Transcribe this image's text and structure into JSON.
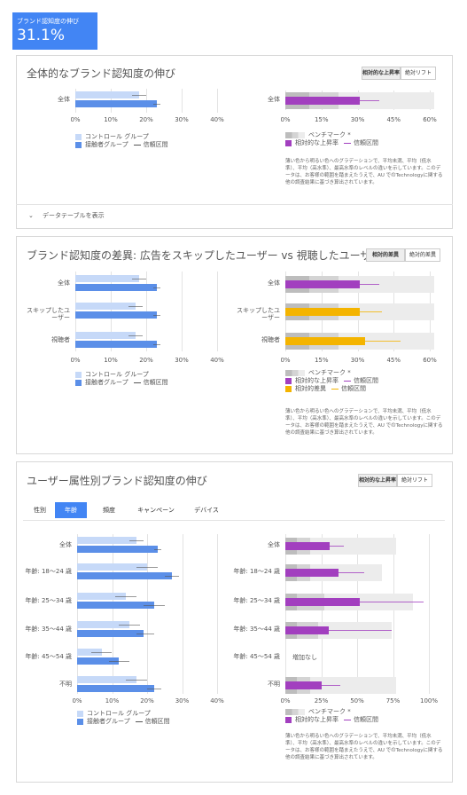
{
  "header": {
    "title": "ブランド認知度の伸び",
    "value": "31.1%"
  },
  "cards": [
    {
      "title": "全体的なブランド認知度の伸び",
      "buttons": [
        "相対的な上昇率",
        "絶対リフト"
      ],
      "note": "薄い色から明るい色へのグラデーションで、平均未満、平均（低水準）、平均（高水準）、最高水準のレベルの違いを示しています。このデータは、お客様の範囲を踏まえたうえで、AU でのTechnologyに関する他の調査結果に基づき算出されています。",
      "table_link": "データテーブルを表示"
    },
    {
      "title": "ブランド認知度の差異: 広告をスキップしたユーザー vs 視聴したユーザー",
      "buttons": [
        "相対的差異",
        "絶対的差異"
      ],
      "note": "薄い色から明るい色へのグラデーションで、平均未満、平均（低水準）、平均（高水準）、最高水準のレベルの違いを示しています。このデータは、お客様の範囲を踏まえたうえで、AU でのTechnologyに関する他の調査結果に基づき算出されています。"
    },
    {
      "title": "ユーザー属性別ブランド認知度の伸び",
      "buttons": [
        "相対的な上昇率",
        "絶対リフト"
      ],
      "tabs": [
        "性別",
        "年齢",
        "頻度",
        "キャンペーン",
        "デバイス"
      ],
      "active_tab": "年齢",
      "note": "薄い色から明るい色へのグラデーションで、平均未満、平均（低水準）、平均（高水準）、最高水準のレベルの違いを示しています。このデータは、お客様の範囲を踏まえたうえで、AU でのTechnologyに関する他の調査結果に基づき算出されています。"
    }
  ],
  "chart_data": [
    {
      "type": "bar",
      "categories": [
        "全体"
      ],
      "series": [
        {
          "name": "コントロール グループ",
          "color": "#c6d9f8",
          "values": [
            18
          ],
          "ci": [
            [
              16,
              20
            ]
          ]
        },
        {
          "name": "接触者グループ",
          "color": "#5b8fe8",
          "values": [
            23
          ],
          "ci": [
            [
              22,
              24
            ]
          ]
        }
      ],
      "ci_label": "信頼区間",
      "xlim": [
        0,
        40
      ],
      "xticks": [
        {
          "value": 0,
          "label": "0%"
        },
        {
          "value": 10,
          "label": "10%"
        },
        {
          "value": 20,
          "label": "20%"
        },
        {
          "value": 30,
          "label": "30%"
        },
        {
          "value": 40,
          "label": "40%"
        }
      ]
    },
    {
      "type": "bar",
      "categories": [
        "全体"
      ],
      "benchmark": {
        "name": "ベンチマーク *",
        "values": [
          [
            10,
            22,
            62
          ]
        ]
      },
      "series": [
        {
          "name": "相対的な上昇率",
          "color": "#a23fbf",
          "values": [
            31
          ],
          "ci": [
            [
              21,
              39
            ]
          ]
        }
      ],
      "ci_label": "信頼区間",
      "xlim": [
        0,
        60
      ],
      "xticks": [
        {
          "value": 0,
          "label": "0%"
        },
        {
          "value": 15,
          "label": "15%"
        },
        {
          "value": 30,
          "label": "30%"
        },
        {
          "value": 45,
          "label": "45%"
        },
        {
          "value": 60,
          "label": "60%"
        }
      ]
    },
    {
      "type": "bar",
      "categories": [
        "全体",
        "スキップしたユーザー",
        "視聴者"
      ],
      "series": [
        {
          "name": "コントロール グループ",
          "color": "#c6d9f8",
          "values": [
            18,
            17,
            17
          ],
          "ci": [
            [
              16,
              20
            ],
            [
              15,
              19
            ],
            [
              15,
              19
            ]
          ]
        },
        {
          "name": "接触者グループ",
          "color": "#5b8fe8",
          "values": [
            23,
            23,
            23
          ],
          "ci": [
            [
              22,
              24
            ],
            [
              22,
              24
            ],
            [
              22,
              24
            ]
          ]
        }
      ],
      "ci_label": "信頼区間",
      "xlim": [
        0,
        40
      ],
      "xticks": [
        {
          "value": 0,
          "label": "0%"
        },
        {
          "value": 10,
          "label": "10%"
        },
        {
          "value": 20,
          "label": "20%"
        },
        {
          "value": 30,
          "label": "30%"
        },
        {
          "value": 40,
          "label": "40%"
        }
      ]
    },
    {
      "type": "bar",
      "categories": [
        "全体",
        "スキップしたユーザー",
        "視聴者"
      ],
      "benchmark": {
        "name": "ベンチマーク *",
        "values": [
          [
            10,
            22,
            62
          ],
          [
            10,
            22,
            62
          ],
          [
            10,
            22,
            62
          ]
        ]
      },
      "series": [
        {
          "name": "相対的な上昇率",
          "color": "#a23fbf",
          "values": [
            31,
            null,
            null
          ],
          "ci": [
            [
              21,
              39
            ],
            null,
            null
          ]
        },
        {
          "name": "相対的差異",
          "color": "#f4b400",
          "values": [
            null,
            31,
            33
          ],
          "ci": [
            null,
            [
              22,
              40
            ],
            [
              23,
              48
            ]
          ]
        }
      ],
      "ci_label": "信頼区間",
      "xlim": [
        0,
        60
      ],
      "xticks": [
        {
          "value": 0,
          "label": "0%"
        },
        {
          "value": 15,
          "label": "15%"
        },
        {
          "value": 30,
          "label": "30%"
        },
        {
          "value": 45,
          "label": "45%"
        },
        {
          "value": 60,
          "label": "60%"
        }
      ]
    },
    {
      "type": "bar",
      "categories": [
        "全体",
        "年齢: 18〜24 歳",
        "年齢: 25〜34 歳",
        "年齢: 35〜44 歳",
        "年齢: 45〜54 歳",
        "不明"
      ],
      "series": [
        {
          "name": "コントロール グループ",
          "color": "#c6d9f8",
          "values": [
            17,
            20,
            14,
            15,
            7,
            17
          ],
          "ci": [
            [
              15,
              19
            ],
            [
              17,
              23
            ],
            [
              11,
              17
            ],
            [
              12,
              18
            ],
            [
              4,
              10
            ],
            [
              14,
              20
            ]
          ]
        },
        {
          "name": "接触者グループ",
          "color": "#5b8fe8",
          "values": [
            23,
            27,
            22,
            19,
            12,
            22
          ],
          "ci": [
            [
              22,
              24
            ],
            [
              25,
              29
            ],
            [
              19,
              25
            ],
            [
              17,
              22
            ],
            [
              9,
              15
            ],
            [
              20,
              24
            ]
          ]
        }
      ],
      "ci_label": "信頼区間",
      "xlim": [
        0,
        40
      ],
      "xticks": [
        {
          "value": 0,
          "label": "0%"
        },
        {
          "value": 10,
          "label": "10%"
        },
        {
          "value": 20,
          "label": "20%"
        },
        {
          "value": 30,
          "label": "30%"
        },
        {
          "value": 40,
          "label": "40%"
        }
      ]
    },
    {
      "type": "bar",
      "categories": [
        "全体",
        "年齢: 18〜24 歳",
        "年齢: 25〜34 歳",
        "年齢: 35〜44 歳",
        "年齢: 45〜54 歳",
        "不明"
      ],
      "benchmark": {
        "name": "ベンチマーク *",
        "values": [
          [
            8,
            17,
            77
          ],
          [
            8,
            17,
            67
          ],
          [
            8,
            27,
            89
          ],
          [
            8,
            23,
            74
          ],
          null,
          [
            8,
            17,
            77
          ]
        ]
      },
      "series": [
        {
          "name": "相対的な上昇率",
          "color": "#a23fbf",
          "values": [
            31,
            37,
            52,
            30,
            null,
            25
          ],
          "ci": [
            [
              24,
              41
            ],
            [
              28,
              55
            ],
            [
              20,
              96
            ],
            [
              14,
              74
            ],
            null,
            [
              18,
              38
            ]
          ]
        }
      ],
      "ci_label": "信頼区間",
      "empty_label": "増加なし",
      "xlim": [
        0,
        100
      ],
      "xticks": [
        {
          "value": 0,
          "label": "0%"
        },
        {
          "value": 25,
          "label": "25%"
        },
        {
          "value": 50,
          "label": "50%"
        },
        {
          "value": 75,
          "label": "75%"
        },
        {
          "value": 100,
          "label": "100%"
        }
      ]
    }
  ]
}
